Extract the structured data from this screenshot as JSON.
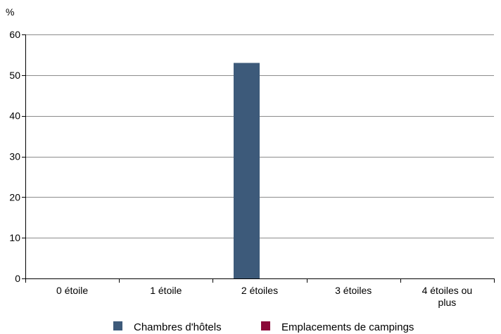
{
  "chart_data": {
    "type": "bar",
    "y_unit_label": "%",
    "categories": [
      "0 étoile",
      "1 étoile",
      "2 étoiles",
      "3 étoiles",
      "4 étoiles ou plus"
    ],
    "category_lines": [
      [
        "0 étoile"
      ],
      [
        "1 étoile"
      ],
      [
        "2 étoiles"
      ],
      [
        "3 étoiles"
      ],
      [
        "4 étoiles ou",
        "plus"
      ]
    ],
    "series": [
      {
        "name": "Chambres d'hôtels",
        "values": [
          0,
          0,
          53,
          0,
          0
        ],
        "color": "#3d5a7a"
      },
      {
        "name": "Emplacements de campings",
        "values": [
          0,
          0,
          0,
          0,
          0
        ],
        "color": "#8b0a3a"
      }
    ],
    "ylim": [
      0,
      60
    ],
    "yticks": [
      0,
      10,
      20,
      30,
      40,
      50,
      60
    ],
    "grid": true,
    "legend_position": "bottom-center"
  }
}
